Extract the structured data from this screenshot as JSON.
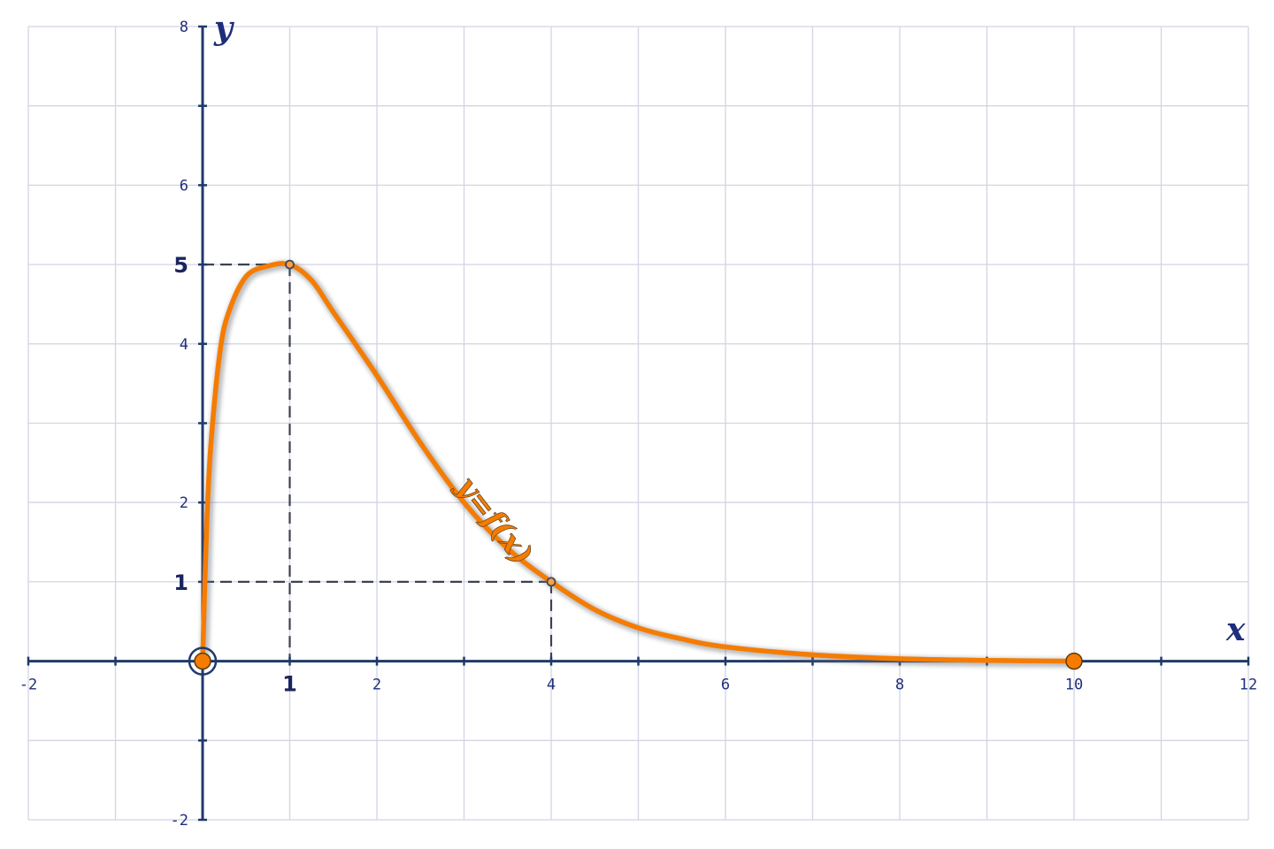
{
  "chart_data": {
    "type": "line",
    "x_axis_label": "x",
    "y_axis_label": "y",
    "xlim": [
      -2,
      12
    ],
    "ylim": [
      -2,
      8
    ],
    "grid": true,
    "x_ticks": [
      -2,
      2,
      4,
      6,
      8,
      10,
      12
    ],
    "y_ticks": [
      -2,
      2,
      4,
      6,
      8
    ],
    "x_ticks_highlighted": [
      1
    ],
    "y_ticks_highlighted": [
      1,
      5
    ],
    "x_tick_labels": {
      "-2": "-2",
      "1": "1",
      "2": "2",
      "4": "4",
      "6": "6",
      "8": "8",
      "10": "10",
      "12": "12"
    },
    "y_tick_labels": {
      "-2": "-2",
      "1": "1",
      "2": "2",
      "4": "4",
      "5": "5",
      "6": "6",
      "8": "8"
    },
    "curve_label": "y=f(x)",
    "curve_color": "#f57c00",
    "axis_color": "#1f3a6b",
    "series": [
      {
        "points": [
          [
            0,
            0
          ],
          [
            0.05,
            1.8
          ],
          [
            0.1,
            2.8
          ],
          [
            0.2,
            3.9
          ],
          [
            0.3,
            4.4
          ],
          [
            0.5,
            4.85
          ],
          [
            0.75,
            4.98
          ],
          [
            1,
            5
          ],
          [
            1.25,
            4.8
          ],
          [
            1.5,
            4.4
          ],
          [
            2,
            3.6
          ],
          [
            2.5,
            2.75
          ],
          [
            3,
            2.0
          ],
          [
            3.5,
            1.42
          ],
          [
            4,
            1.0
          ],
          [
            4.5,
            0.65
          ],
          [
            5,
            0.42
          ],
          [
            5.5,
            0.28
          ],
          [
            6,
            0.18
          ],
          [
            7,
            0.08
          ],
          [
            8,
            0.03
          ],
          [
            9,
            0.01
          ],
          [
            10,
            0
          ]
        ]
      }
    ],
    "marked_points": [
      [
        1,
        5
      ],
      [
        4,
        1
      ]
    ],
    "endpoints": [
      [
        0,
        0
      ],
      [
        10,
        0
      ]
    ],
    "guides": [
      {
        "from": [
          0,
          5
        ],
        "to": [
          1,
          5
        ]
      },
      {
        "from": [
          1,
          5
        ],
        "to": [
          1,
          0
        ]
      },
      {
        "from": [
          0,
          1
        ],
        "to": [
          4,
          1
        ]
      },
      {
        "from": [
          4,
          1
        ],
        "to": [
          4,
          0
        ]
      }
    ]
  }
}
